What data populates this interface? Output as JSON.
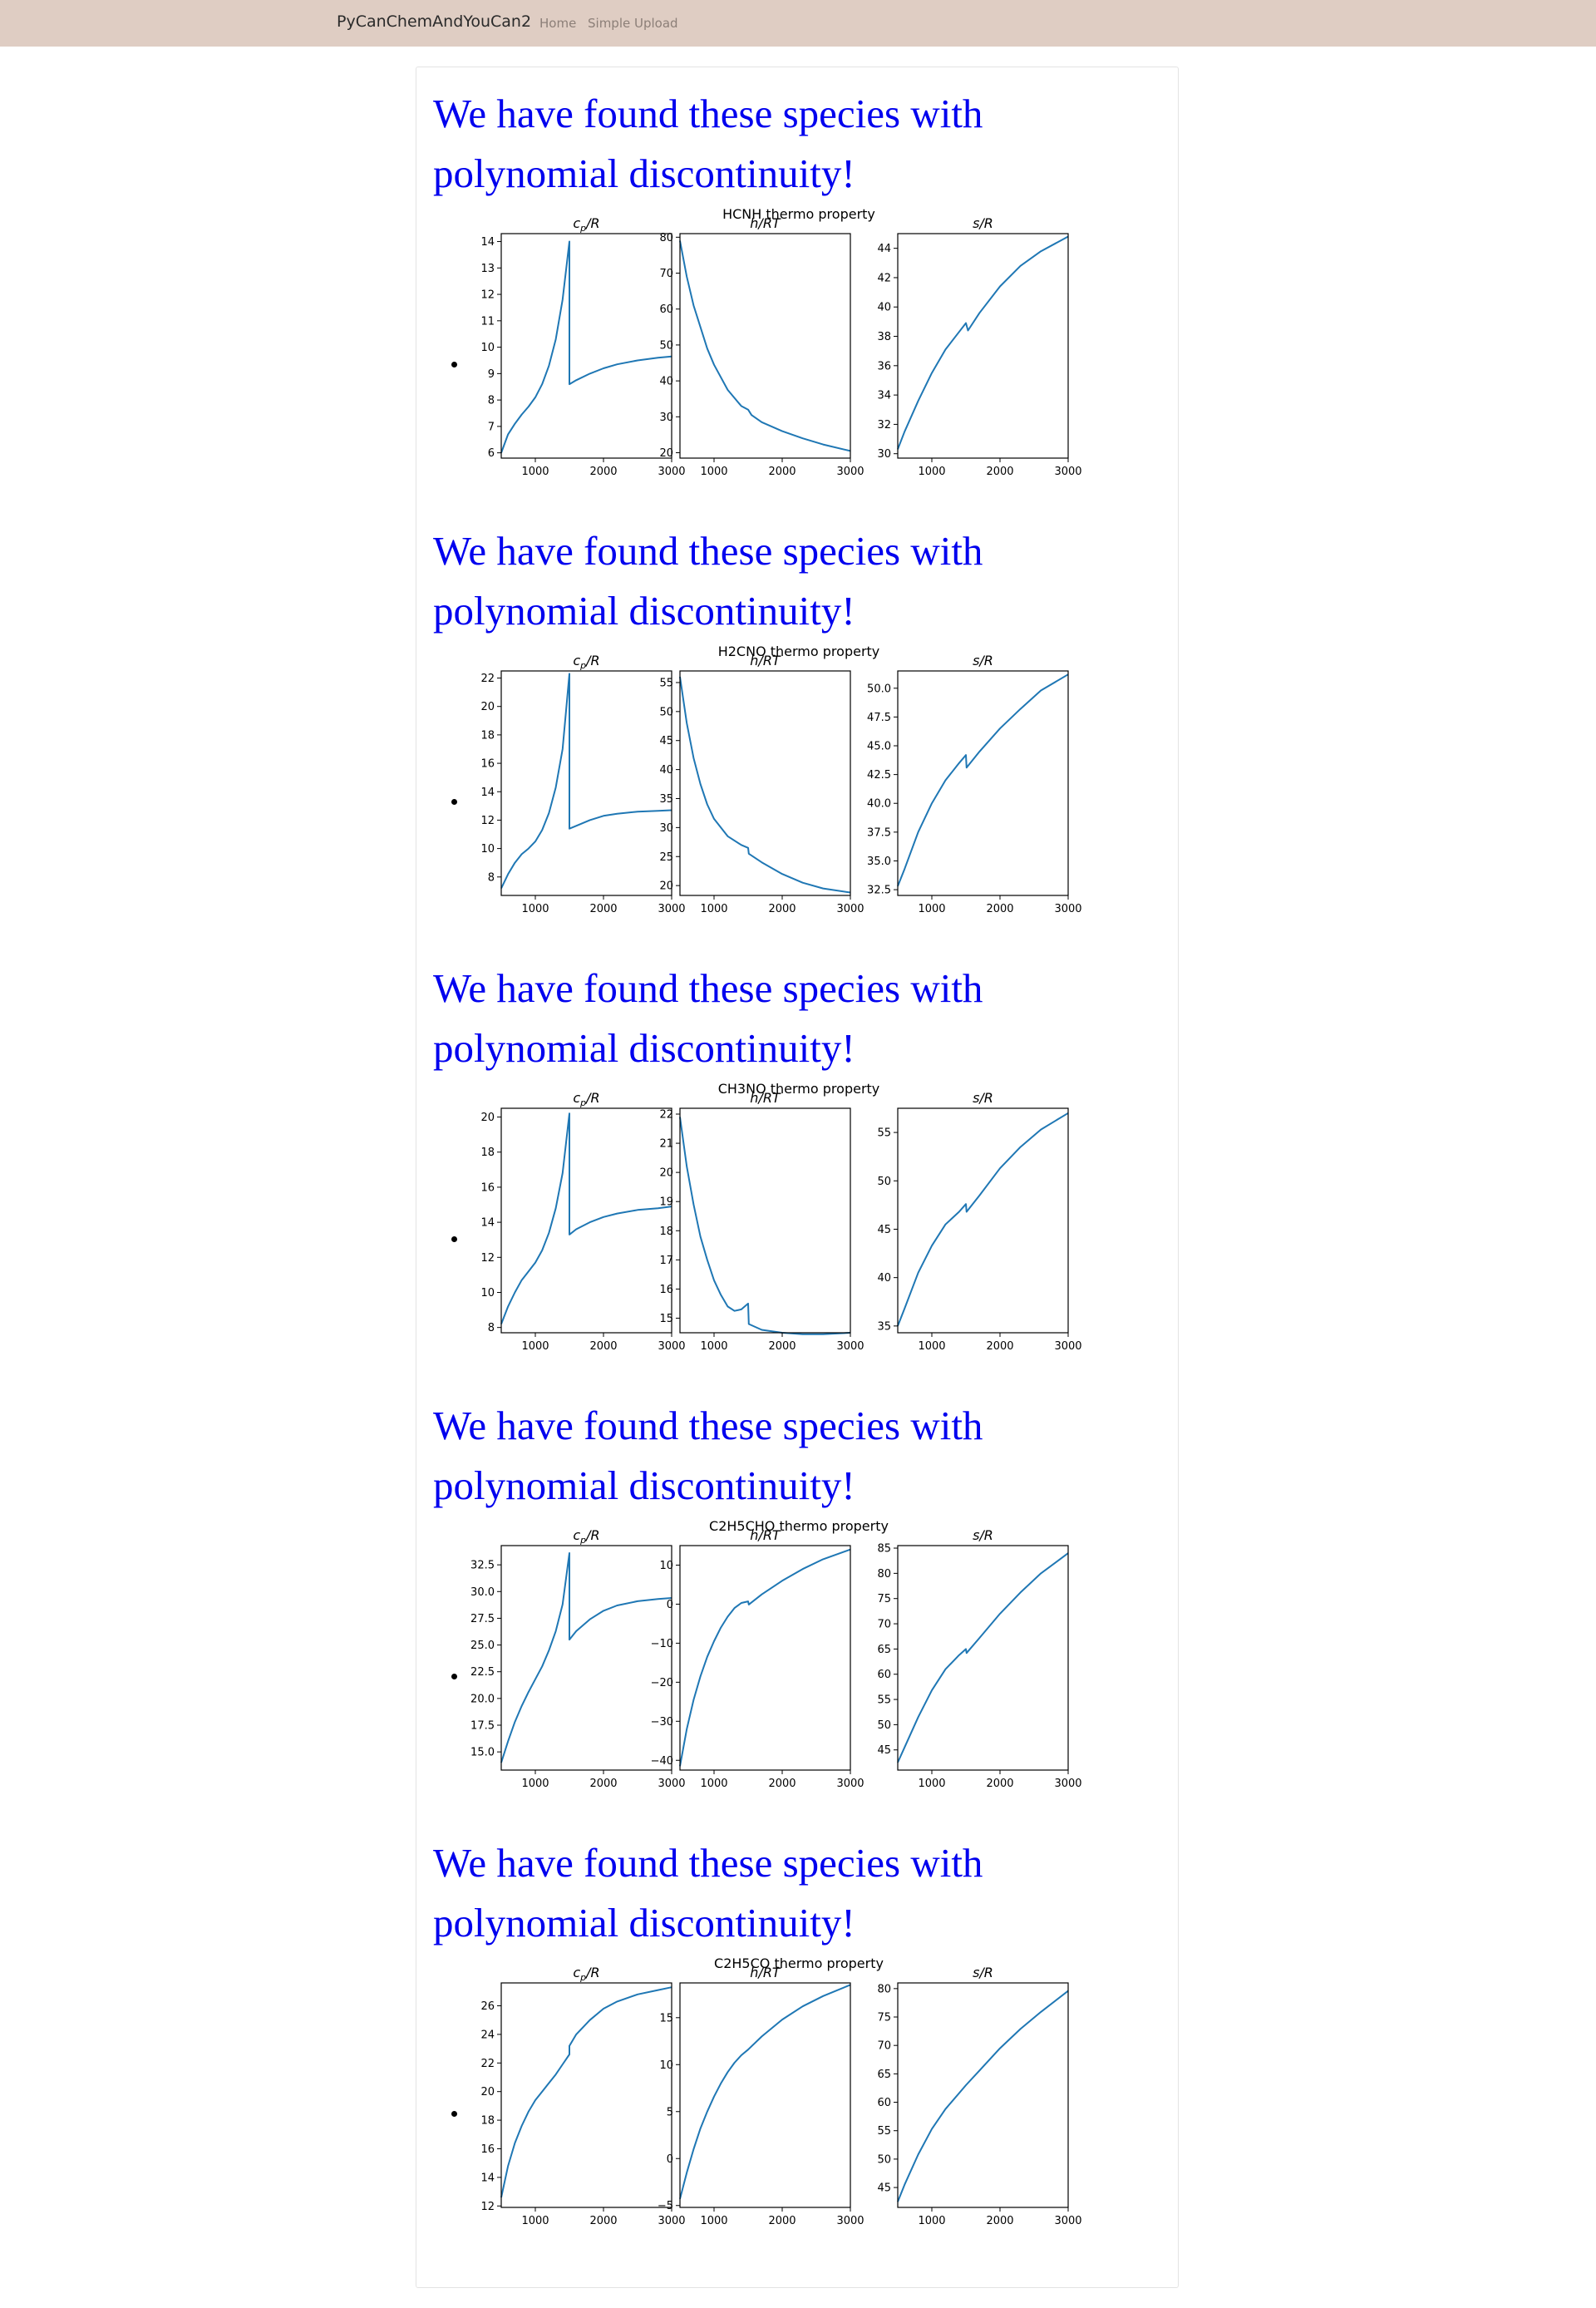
{
  "navbar": {
    "brand": "PyCanChemAndYouCan2",
    "links": [
      "Home",
      "Simple Upload"
    ]
  },
  "colors": {
    "navbar_bg": "#dfcdc3",
    "heading": "#0000ee",
    "line": "#1f77b4"
  },
  "sections": [
    {
      "heading": "We have found these species with polynomial discontinuity!",
      "figure_title": "HCNH thermo property"
    },
    {
      "heading": "We have found these species with polynomial discontinuity!",
      "figure_title": "H2CNO thermo property"
    },
    {
      "heading": "We have found these species with polynomial discontinuity!",
      "figure_title": "CH3NO thermo property"
    },
    {
      "heading": "We have found these species with polynomial discontinuity!",
      "figure_title": "C2H5CHO thermo property"
    },
    {
      "heading": "We have found these species with polynomial discontinuity!",
      "figure_title": "C2H5CO thermo property"
    }
  ],
  "chart_data": [
    {
      "type": "line",
      "title": "HCNH thermo property",
      "subplots": [
        {
          "title": "cp/R",
          "xlim": [
            500,
            3000
          ],
          "ylim": [
            5.8,
            14.3
          ],
          "yticks": [
            6,
            7,
            8,
            9,
            10,
            11,
            12,
            13,
            14
          ],
          "xticks": [
            1000,
            2000,
            3000
          ],
          "x": [
            500,
            600,
            700,
            800,
            900,
            1000,
            1100,
            1200,
            1300,
            1400,
            1500,
            1500,
            1600,
            1800,
            2000,
            2200,
            2500,
            2800,
            3000
          ],
          "y": [
            6.0,
            6.7,
            7.1,
            7.45,
            7.75,
            8.1,
            8.6,
            9.3,
            10.3,
            11.8,
            14.0,
            8.6,
            8.75,
            9.0,
            9.2,
            9.35,
            9.5,
            9.6,
            9.65
          ]
        },
        {
          "title": "h/RT",
          "xlim": [
            500,
            3000
          ],
          "ylim": [
            18.5,
            81
          ],
          "yticks": [
            20,
            30,
            40,
            50,
            60,
            70,
            80
          ],
          "xticks": [
            1000,
            2000,
            3000
          ],
          "x": [
            500,
            600,
            700,
            800,
            900,
            1000,
            1200,
            1400,
            1500,
            1550,
            1700,
            2000,
            2300,
            2600,
            3000
          ],
          "y": [
            79,
            69,
            61,
            55,
            49,
            44.5,
            37.5,
            33,
            32,
            30.5,
            28.5,
            26,
            24,
            22.3,
            20.5
          ]
        },
        {
          "title": "s/R",
          "xlim": [
            500,
            3000
          ],
          "ylim": [
            29.7,
            45
          ],
          "yticks": [
            30,
            32,
            34,
            36,
            38,
            40,
            42,
            44
          ],
          "xticks": [
            1000,
            2000,
            3000
          ],
          "x": [
            500,
            600,
            800,
            1000,
            1200,
            1400,
            1500,
            1530,
            1700,
            2000,
            2300,
            2600,
            3000
          ],
          "y": [
            30.3,
            31.5,
            33.6,
            35.5,
            37.1,
            38.3,
            38.9,
            38.4,
            39.6,
            41.4,
            42.8,
            43.8,
            44.8
          ]
        }
      ]
    },
    {
      "type": "line",
      "title": "H2CNO thermo property",
      "subplots": [
        {
          "title": "cp/R",
          "xlim": [
            500,
            3000
          ],
          "ylim": [
            6.7,
            22.5
          ],
          "yticks": [
            8,
            10,
            12,
            14,
            16,
            18,
            20,
            22
          ],
          "xticks": [
            1000,
            2000,
            3000
          ],
          "x": [
            500,
            600,
            700,
            800,
            900,
            1000,
            1100,
            1200,
            1300,
            1400,
            1500,
            1500,
            1600,
            1800,
            2000,
            2200,
            2500,
            2800,
            3000
          ],
          "y": [
            7.2,
            8.2,
            9.0,
            9.6,
            10.0,
            10.5,
            11.3,
            12.5,
            14.3,
            17.0,
            22.3,
            11.4,
            11.6,
            12.0,
            12.3,
            12.45,
            12.6,
            12.65,
            12.7
          ]
        },
        {
          "title": "h/RT",
          "xlim": [
            500,
            3000
          ],
          "ylim": [
            18.3,
            57
          ],
          "yticks": [
            20,
            25,
            30,
            35,
            40,
            45,
            50,
            55
          ],
          "xticks": [
            1000,
            2000,
            3000
          ],
          "x": [
            500,
            600,
            700,
            800,
            900,
            1000,
            1200,
            1400,
            1500,
            1510,
            1700,
            2000,
            2300,
            2600,
            3000
          ],
          "y": [
            56,
            48,
            42,
            37.5,
            34,
            31.5,
            28.5,
            27,
            26.5,
            25.5,
            24,
            22,
            20.5,
            19.5,
            18.8
          ]
        },
        {
          "title": "s/R",
          "xlim": [
            500,
            3000
          ],
          "ylim": [
            32,
            51.5
          ],
          "yticks": [
            32.5,
            35.0,
            37.5,
            40.0,
            42.5,
            45.0,
            47.5,
            50.0
          ],
          "xticks": [
            1000,
            2000,
            3000
          ],
          "x": [
            500,
            600,
            800,
            1000,
            1200,
            1400,
            1500,
            1510,
            1700,
            2000,
            2300,
            2600,
            3000
          ],
          "y": [
            32.8,
            34.3,
            37.5,
            40.0,
            42.0,
            43.5,
            44.2,
            43.1,
            44.5,
            46.5,
            48.2,
            49.8,
            51.2
          ]
        }
      ]
    },
    {
      "type": "line",
      "title": "CH3NO thermo property",
      "subplots": [
        {
          "title": "cp/R",
          "xlim": [
            500,
            3000
          ],
          "ylim": [
            7.7,
            20.5
          ],
          "yticks": [
            8,
            10,
            12,
            14,
            16,
            18,
            20
          ],
          "xticks": [
            1000,
            2000,
            3000
          ],
          "x": [
            500,
            600,
            700,
            800,
            900,
            1000,
            1100,
            1200,
            1300,
            1400,
            1500,
            1500,
            1600,
            1800,
            2000,
            2200,
            2500,
            2800,
            3000
          ],
          "y": [
            8.2,
            9.2,
            10.0,
            10.7,
            11.2,
            11.7,
            12.4,
            13.4,
            14.8,
            16.8,
            20.2,
            13.3,
            13.6,
            14.0,
            14.3,
            14.5,
            14.7,
            14.8,
            14.9
          ]
        },
        {
          "title": "h/RT",
          "xlim": [
            500,
            3000
          ],
          "ylim": [
            14.5,
            22.2
          ],
          "yticks": [
            15,
            16,
            17,
            18,
            19,
            20,
            21,
            22
          ],
          "xticks": [
            1000,
            2000,
            3000
          ],
          "x": [
            500,
            600,
            700,
            800,
            900,
            1000,
            1100,
            1200,
            1300,
            1400,
            1500,
            1510,
            1700,
            2000,
            2300,
            2600,
            3000
          ],
          "y": [
            21.9,
            20.2,
            18.9,
            17.8,
            17.0,
            16.3,
            15.8,
            15.4,
            15.25,
            15.3,
            15.5,
            14.8,
            14.6,
            14.5,
            14.45,
            14.45,
            14.5
          ]
        },
        {
          "title": "s/R",
          "xlim": [
            500,
            3000
          ],
          "ylim": [
            34.3,
            57.5
          ],
          "yticks": [
            35,
            40,
            45,
            50,
            55
          ],
          "xticks": [
            1000,
            2000,
            3000
          ],
          "x": [
            500,
            600,
            800,
            1000,
            1200,
            1400,
            1500,
            1510,
            1700,
            2000,
            2300,
            2600,
            3000
          ],
          "y": [
            35.0,
            36.8,
            40.5,
            43.3,
            45.5,
            46.8,
            47.6,
            46.8,
            48.5,
            51.3,
            53.5,
            55.3,
            57.0
          ]
        }
      ]
    },
    {
      "type": "line",
      "title": "C2H5CHO thermo property",
      "subplots": [
        {
          "title": "cp/R",
          "xlim": [
            500,
            3000
          ],
          "ylim": [
            13.3,
            34.3
          ],
          "yticks": [
            15.0,
            17.5,
            20.0,
            22.5,
            25.0,
            27.5,
            30.0,
            32.5
          ],
          "xticks": [
            1000,
            2000,
            3000
          ],
          "x": [
            500,
            600,
            700,
            800,
            900,
            1000,
            1100,
            1200,
            1300,
            1400,
            1500,
            1500,
            1600,
            1800,
            2000,
            2200,
            2500,
            2800,
            3000
          ],
          "y": [
            14.0,
            16.0,
            17.8,
            19.3,
            20.6,
            21.8,
            23.0,
            24.5,
            26.3,
            28.8,
            33.6,
            25.5,
            26.3,
            27.4,
            28.2,
            28.7,
            29.1,
            29.3,
            29.4
          ]
        },
        {
          "title": "h/RT",
          "xlim": [
            500,
            3000
          ],
          "ylim": [
            -42.5,
            15
          ],
          "yticks": [
            -40,
            -30,
            -20,
            -10,
            0,
            10
          ],
          "xticks": [
            1000,
            2000,
            3000
          ],
          "x": [
            500,
            600,
            700,
            800,
            900,
            1000,
            1100,
            1200,
            1300,
            1400,
            1500,
            1510,
            1700,
            2000,
            2300,
            2600,
            3000
          ],
          "y": [
            -41.5,
            -32,
            -24.5,
            -18.5,
            -13.5,
            -9.5,
            -6.0,
            -3.2,
            -1.0,
            0.3,
            0.7,
            -0.1,
            2.5,
            6.0,
            9.0,
            11.5,
            14.0
          ]
        },
        {
          "title": "s/R",
          "xlim": [
            500,
            3000
          ],
          "ylim": [
            41,
            85.5
          ],
          "yticks": [
            45,
            50,
            55,
            60,
            65,
            70,
            75,
            80,
            85
          ],
          "xticks": [
            1000,
            2000,
            3000
          ],
          "x": [
            500,
            600,
            800,
            1000,
            1200,
            1400,
            1500,
            1510,
            1700,
            2000,
            2300,
            2600,
            3000
          ],
          "y": [
            42.5,
            45.5,
            51.5,
            56.8,
            61.0,
            63.8,
            65.0,
            64.2,
            67.2,
            72.0,
            76.2,
            80.0,
            84.0
          ]
        }
      ]
    },
    {
      "type": "line",
      "title": "C2H5CO thermo property",
      "subplots": [
        {
          "title": "cp/R",
          "xlim": [
            500,
            3000
          ],
          "ylim": [
            11.9,
            27.6
          ],
          "yticks": [
            12,
            14,
            16,
            18,
            20,
            22,
            24,
            26
          ],
          "xticks": [
            1000,
            2000,
            3000
          ],
          "x": [
            500,
            600,
            700,
            800,
            900,
            1000,
            1100,
            1200,
            1300,
            1400,
            1500,
            1500,
            1600,
            1800,
            2000,
            2200,
            2500,
            2800,
            3000
          ],
          "y": [
            12.6,
            14.8,
            16.4,
            17.6,
            18.6,
            19.4,
            20.0,
            20.6,
            21.2,
            21.9,
            22.6,
            23.2,
            24.0,
            25.0,
            25.8,
            26.3,
            26.8,
            27.1,
            27.3
          ]
        },
        {
          "title": "h/RT",
          "xlim": [
            500,
            3000
          ],
          "ylim": [
            -5.2,
            18.7
          ],
          "yticks": [
            -5,
            0,
            5,
            10,
            15
          ],
          "xticks": [
            1000,
            2000,
            3000
          ],
          "x": [
            500,
            600,
            700,
            800,
            900,
            1000,
            1100,
            1200,
            1300,
            1400,
            1500,
            1700,
            2000,
            2300,
            2600,
            3000
          ],
          "y": [
            -4.3,
            -1.5,
            1.0,
            3.2,
            5.0,
            6.6,
            8.0,
            9.2,
            10.2,
            11.0,
            11.6,
            13.0,
            14.8,
            16.2,
            17.3,
            18.5
          ]
        },
        {
          "title": "s/R",
          "xlim": [
            500,
            3000
          ],
          "ylim": [
            41.5,
            81
          ],
          "yticks": [
            45,
            50,
            55,
            60,
            65,
            70,
            75,
            80
          ],
          "xticks": [
            1000,
            2000,
            3000
          ],
          "x": [
            500,
            600,
            800,
            1000,
            1200,
            1400,
            1500,
            1700,
            2000,
            2300,
            2600,
            3000
          ],
          "y": [
            42.5,
            45.5,
            50.8,
            55.3,
            58.8,
            61.6,
            63.0,
            65.6,
            69.5,
            72.9,
            75.9,
            79.6
          ]
        }
      ]
    }
  ]
}
